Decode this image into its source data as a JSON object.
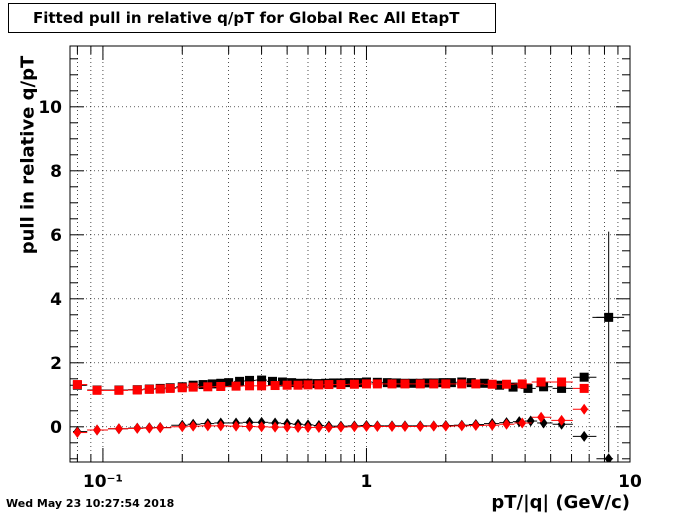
{
  "title": "Fitted pull in relative q/pT for Global Rec All EtapT",
  "timestamp": "Wed May 23 10:27:54 2018",
  "chart_data": {
    "type": "scatter",
    "title": "Fitted pull in relative q/pT for Global Rec All EtapT",
    "xlabel": "pT/|q| (GeV/c)",
    "ylabel": "pull in relative q/pT",
    "x_scale": "log",
    "xlim": [
      0.075,
      10
    ],
    "ylim": [
      -1.1,
      11.9
    ],
    "x_ticks": [
      {
        "value": 0.1,
        "label": "10⁻¹"
      },
      {
        "value": 1,
        "label": "1"
      },
      {
        "value": 10,
        "label": "10"
      }
    ],
    "y_ticks": [
      0,
      2,
      4,
      6,
      8,
      10
    ],
    "grid": true,
    "series": [
      {
        "marker": "square",
        "color": "#000000",
        "points": [
          [
            0.08,
            1.3
          ],
          [
            0.095,
            1.15
          ],
          [
            0.115,
            1.15
          ],
          [
            0.135,
            1.16
          ],
          [
            0.15,
            1.18
          ],
          [
            0.165,
            1.2
          ],
          [
            0.18,
            1.22
          ],
          [
            0.2,
            1.25
          ],
          [
            0.22,
            1.3
          ],
          [
            0.24,
            1.32
          ],
          [
            0.26,
            1.34
          ],
          [
            0.28,
            1.36
          ],
          [
            0.3,
            1.38
          ],
          [
            0.33,
            1.42
          ],
          [
            0.36,
            1.45
          ],
          [
            0.4,
            1.46
          ],
          [
            0.44,
            1.42
          ],
          [
            0.48,
            1.4
          ],
          [
            0.52,
            1.38
          ],
          [
            0.56,
            1.36
          ],
          [
            0.6,
            1.36
          ],
          [
            0.65,
            1.35
          ],
          [
            0.7,
            1.36
          ],
          [
            0.75,
            1.37
          ],
          [
            0.8,
            1.37
          ],
          [
            0.86,
            1.38
          ],
          [
            0.93,
            1.38
          ],
          [
            1.0,
            1.4
          ],
          [
            1.1,
            1.39
          ],
          [
            1.2,
            1.38
          ],
          [
            1.3,
            1.37
          ],
          [
            1.4,
            1.36
          ],
          [
            1.5,
            1.36
          ],
          [
            1.6,
            1.36
          ],
          [
            1.7,
            1.37
          ],
          [
            1.8,
            1.37
          ],
          [
            1.95,
            1.38
          ],
          [
            2.1,
            1.38
          ],
          [
            2.3,
            1.4
          ],
          [
            2.5,
            1.38
          ],
          [
            2.8,
            1.36
          ],
          [
            3.2,
            1.3
          ],
          [
            3.6,
            1.24
          ],
          [
            4.1,
            1.2
          ],
          [
            4.7,
            1.25
          ],
          [
            5.5,
            1.2
          ],
          [
            6.7,
            1.55
          ],
          [
            8.3,
            3.42
          ]
        ],
        "x_err": [
          [
            0.0738,
            0.0862
          ],
          [
            7.2,
            9.5
          ]
        ],
        "y_err": [
          [
            8.3,
            -0.8,
            6.1
          ]
        ]
      },
      {
        "marker": "diamond",
        "color": "#000000",
        "points": [
          [
            0.08,
            -0.15
          ],
          [
            0.095,
            -0.1
          ],
          [
            0.115,
            -0.06
          ],
          [
            0.135,
            -0.04
          ],
          [
            0.15,
            -0.03
          ],
          [
            0.165,
            -0.02
          ],
          [
            0.2,
            0.05
          ],
          [
            0.22,
            0.08
          ],
          [
            0.25,
            0.1
          ],
          [
            0.28,
            0.12
          ],
          [
            0.32,
            0.12
          ],
          [
            0.36,
            0.14
          ],
          [
            0.4,
            0.14
          ],
          [
            0.45,
            0.12
          ],
          [
            0.5,
            0.1
          ],
          [
            0.55,
            0.08
          ],
          [
            0.6,
            0.06
          ],
          [
            0.66,
            0.04
          ],
          [
            0.72,
            0.02
          ],
          [
            0.8,
            0.02
          ],
          [
            0.9,
            0.03
          ],
          [
            1.0,
            0.04
          ],
          [
            1.1,
            0.03
          ],
          [
            1.25,
            0.03
          ],
          [
            1.4,
            0.03
          ],
          [
            1.6,
            0.03
          ],
          [
            1.8,
            0.03
          ],
          [
            2.0,
            0.04
          ],
          [
            2.3,
            0.05
          ],
          [
            2.6,
            0.07
          ],
          [
            3.0,
            0.1
          ],
          [
            3.4,
            0.13
          ],
          [
            3.8,
            0.16
          ],
          [
            4.2,
            0.18
          ],
          [
            4.7,
            0.12
          ],
          [
            5.5,
            0.08
          ],
          [
            6.7,
            -0.3
          ],
          [
            8.3,
            -1.0
          ]
        ]
      },
      {
        "marker": "square",
        "color": "#ff0000",
        "points": [
          [
            0.08,
            1.32
          ],
          [
            0.095,
            1.14
          ],
          [
            0.115,
            1.14
          ],
          [
            0.135,
            1.15
          ],
          [
            0.15,
            1.17
          ],
          [
            0.165,
            1.18
          ],
          [
            0.18,
            1.2
          ],
          [
            0.2,
            1.22
          ],
          [
            0.22,
            1.24
          ],
          [
            0.25,
            1.25
          ],
          [
            0.28,
            1.26
          ],
          [
            0.32,
            1.27
          ],
          [
            0.36,
            1.28
          ],
          [
            0.4,
            1.28
          ],
          [
            0.45,
            1.29
          ],
          [
            0.5,
            1.3
          ],
          [
            0.55,
            1.3
          ],
          [
            0.6,
            1.31
          ],
          [
            0.66,
            1.31
          ],
          [
            0.72,
            1.32
          ],
          [
            0.8,
            1.32
          ],
          [
            0.9,
            1.33
          ],
          [
            1.0,
            1.34
          ],
          [
            1.1,
            1.34
          ],
          [
            1.25,
            1.34
          ],
          [
            1.4,
            1.34
          ],
          [
            1.6,
            1.34
          ],
          [
            1.8,
            1.34
          ],
          [
            2.0,
            1.34
          ],
          [
            2.3,
            1.34
          ],
          [
            2.6,
            1.34
          ],
          [
            3.0,
            1.33
          ],
          [
            3.4,
            1.33
          ],
          [
            3.9,
            1.34
          ],
          [
            4.6,
            1.4
          ],
          [
            5.5,
            1.4
          ],
          [
            6.7,
            1.2
          ]
        ]
      },
      {
        "marker": "diamond",
        "color": "#ff0000",
        "points": [
          [
            0.08,
            -0.18
          ],
          [
            0.095,
            -0.1
          ],
          [
            0.115,
            -0.06
          ],
          [
            0.135,
            -0.05
          ],
          [
            0.15,
            -0.04
          ],
          [
            0.165,
            -0.03
          ],
          [
            0.2,
            0.0
          ],
          [
            0.22,
            0.02
          ],
          [
            0.25,
            0.03
          ],
          [
            0.28,
            0.03
          ],
          [
            0.32,
            0.02
          ],
          [
            0.36,
            0.01
          ],
          [
            0.4,
            0.0
          ],
          [
            0.45,
            -0.01
          ],
          [
            0.5,
            -0.01
          ],
          [
            0.55,
            -0.02
          ],
          [
            0.6,
            -0.02
          ],
          [
            0.66,
            -0.02
          ],
          [
            0.72,
            -0.02
          ],
          [
            0.8,
            -0.01
          ],
          [
            0.9,
            0.0
          ],
          [
            1.0,
            0.01
          ],
          [
            1.1,
            0.01
          ],
          [
            1.25,
            0.01
          ],
          [
            1.4,
            0.01
          ],
          [
            1.6,
            0.01
          ],
          [
            1.8,
            0.02
          ],
          [
            2.0,
            0.02
          ],
          [
            2.3,
            0.03
          ],
          [
            2.6,
            0.04
          ],
          [
            3.0,
            0.05
          ],
          [
            3.4,
            0.08
          ],
          [
            3.9,
            0.12
          ],
          [
            4.6,
            0.3
          ],
          [
            5.5,
            0.2
          ],
          [
            6.7,
            0.55
          ]
        ]
      }
    ]
  }
}
